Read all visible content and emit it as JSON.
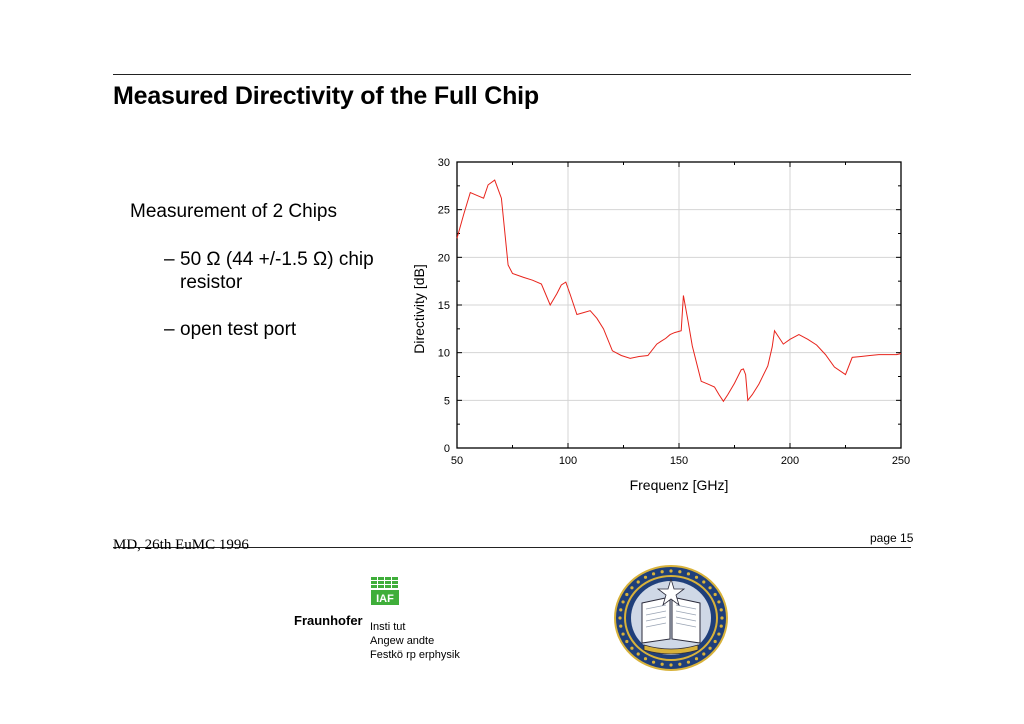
{
  "slide": {
    "title": "Measured Directivity of the Full Chip",
    "bullet_main": "Measurement of 2 Chips",
    "sub_bullets": [
      {
        "dash": "–",
        "text": "50 Ω (44 +/-1.5 Ω) chip resistor"
      },
      {
        "dash": "–",
        "text": "open test port"
      }
    ],
    "footer_left": "MD, 26th EuMC 1996",
    "page_label": "page 15"
  },
  "logos": {
    "iaf_text": "IAF",
    "fraunhofer": "Fraunhofer",
    "institute_lines": [
      "Insti tut",
      "Angew andte",
      "Festkö rp erphysik"
    ],
    "seal_colors": {
      "ring": "#1f3f7a",
      "gold": "#d8b23a"
    }
  },
  "chart_data": {
    "type": "line",
    "xlabel": "Frequenz [GHz]",
    "ylabel": "Directivity [dB]",
    "xlim": [
      50,
      250
    ],
    "ylim": [
      0,
      30
    ],
    "xticks": [
      50,
      100,
      150,
      200,
      250
    ],
    "yticks": [
      0,
      5,
      10,
      15,
      20,
      25,
      30
    ],
    "grid": true,
    "line_color": "#e8241c",
    "series": [
      {
        "x": [
          50,
          53,
          56,
          59,
          62,
          64,
          67,
          70,
          73,
          75,
          80,
          84,
          88,
          92,
          95,
          97,
          99,
          101,
          104,
          107,
          110,
          113,
          116,
          120,
          124,
          128,
          132,
          136,
          140,
          142,
          144,
          146,
          148,
          151,
          152,
          154,
          156,
          160,
          163,
          166,
          168,
          170,
          172,
          175,
          178,
          179,
          180,
          181,
          183,
          186,
          190,
          192,
          193,
          195,
          197,
          200,
          204,
          208,
          212,
          216,
          220,
          225,
          228,
          232,
          236,
          240,
          244,
          248,
          250
        ],
        "y": [
          22,
          24.5,
          26.8,
          26.5,
          26.2,
          27.6,
          28.1,
          26.2,
          19.2,
          18.3,
          17.9,
          17.6,
          17.2,
          15.0,
          16.2,
          17.1,
          17.4,
          16.1,
          14.0,
          14.2,
          14.4,
          13.6,
          12.5,
          10.2,
          9.7,
          9.4,
          9.6,
          9.7,
          10.9,
          11.2,
          11.5,
          11.9,
          12.1,
          12.3,
          16.0,
          13.4,
          10.7,
          7.0,
          6.7,
          6.4,
          5.6,
          4.9,
          5.6,
          6.8,
          8.2,
          8.3,
          7.7,
          5.0,
          5.6,
          6.7,
          8.6,
          10.6,
          12.3,
          11.6,
          10.9,
          11.4,
          11.9,
          11.4,
          10.8,
          9.8,
          8.5,
          7.7,
          9.5,
          9.6,
          9.7,
          9.8,
          9.8,
          9.8,
          9.9
        ]
      }
    ]
  }
}
